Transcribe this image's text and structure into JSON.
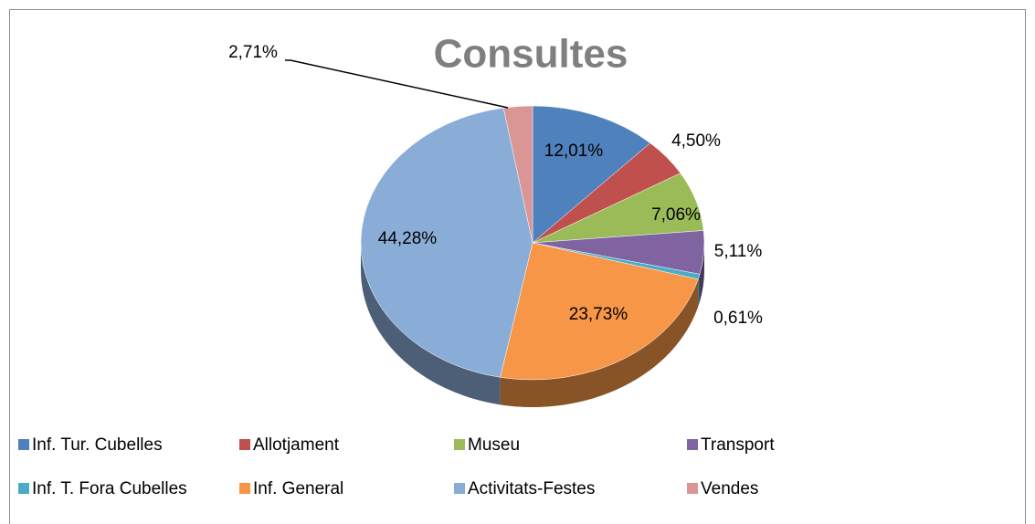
{
  "chart_data": {
    "type": "pie",
    "title": "Consultes",
    "categories": [
      "Inf. Tur. Cubelles",
      "Allotjament",
      "Museu",
      "Transport",
      "Inf. T. Fora Cubelles",
      "Inf. General",
      "Activitats-Festes",
      "Vendes"
    ],
    "values": [
      12.01,
      4.5,
      7.06,
      5.11,
      0.61,
      23.73,
      44.28,
      2.71
    ],
    "value_labels": [
      "12,01%",
      "4,50%",
      "7,06%",
      "5,11%",
      "0,61%",
      "23,73%",
      "44,28%",
      "2,71%"
    ],
    "colors": [
      "#4f81bd",
      "#c0504d",
      "#9bbb59",
      "#8064a2",
      "#4bacc6",
      "#f79646",
      "#8aadd8",
      "#d99694"
    ],
    "legend": "bottom"
  }
}
